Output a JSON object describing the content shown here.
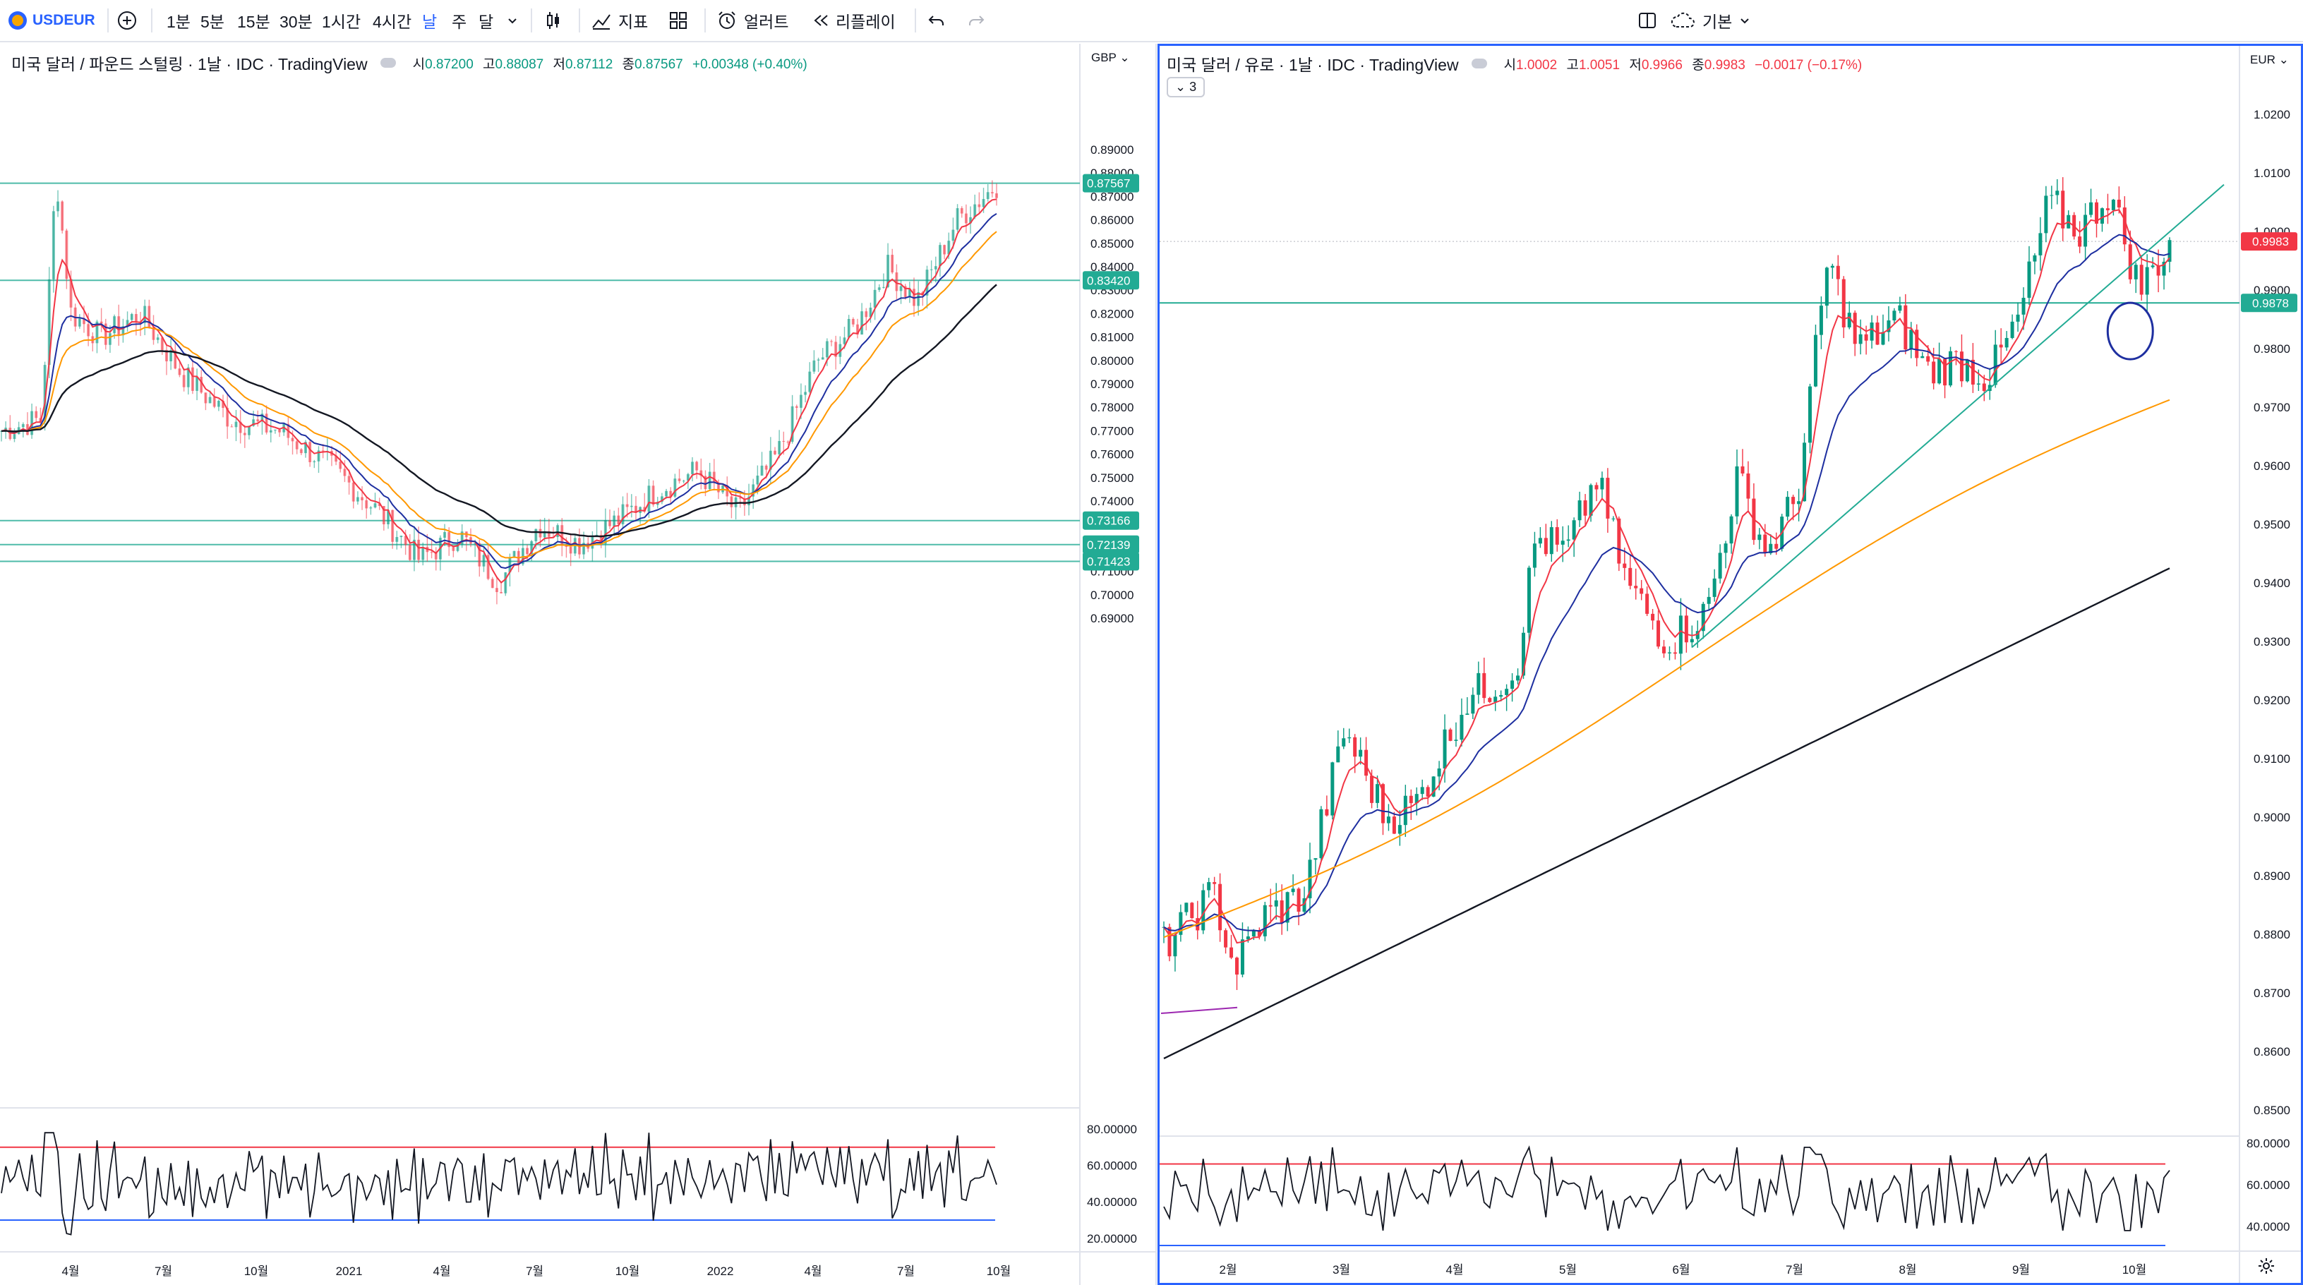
{
  "toolbar": {
    "symbol": "USDEUR",
    "intervals": [
      "1분",
      "5분",
      "15분",
      "30분",
      "1시간",
      "4시간",
      "날",
      "주",
      "달"
    ],
    "active_interval": "날",
    "indicators_label": "지표",
    "alert_label": "얼러트",
    "replay_label": "리플레이",
    "layout_label": "기본"
  },
  "left_chart": {
    "title": "미국 달러 / 파운드 스털링 · 1날 · IDC · TradingView",
    "ohlc": {
      "o_label": "시",
      "o": "0.87200",
      "h_label": "고",
      "h": "0.88087",
      "l_label": "저",
      "l": "0.87112",
      "c_label": "종",
      "c": "0.87567",
      "change": "+0.00348 (+0.40%)"
    },
    "currency": "GBP",
    "price_ticks": [
      "0.89000",
      "0.88000",
      "0.87000",
      "0.86000",
      "0.85000",
      "0.84000",
      "0.83000",
      "0.82000",
      "0.81000",
      "0.80000",
      "0.79000",
      "0.78000",
      "0.77000",
      "0.76000",
      "0.75000",
      "0.74000",
      "0.73000",
      "0.72000",
      "0.71000",
      "0.70000",
      "0.69000"
    ],
    "price_tick_values": [
      0.89,
      0.88,
      0.87,
      0.86,
      0.85,
      0.84,
      0.83,
      0.82,
      0.81,
      0.8,
      0.79,
      0.78,
      0.77,
      0.76,
      0.75,
      0.74,
      0.73,
      0.72,
      0.71,
      0.7,
      0.69
    ],
    "horizontal_levels": [
      0.87567,
      0.8342,
      0.73166,
      0.72139,
      0.71423
    ],
    "level_labels": [
      "0.87567",
      "0.83420",
      "0.73166",
      "0.72139",
      "0.71423"
    ],
    "rsi_ticks": [
      "80.00000",
      "60.00000",
      "40.00000",
      "20.00000"
    ],
    "rsi_tick_values": [
      80,
      60,
      40,
      20
    ],
    "rsi_bands": [
      70,
      30
    ],
    "time_ticks": [
      "4월",
      "7월",
      "10월",
      "2021",
      "4월",
      "7월",
      "10월",
      "2022",
      "4월",
      "7월",
      "10월"
    ],
    "colors": {
      "up": "#089981",
      "down": "#f23645",
      "ema_fast": "#f23645",
      "ema_mid": "#1e2fa0",
      "ema_slow": "#ff9800",
      "ema_long": "#131722",
      "level": "#22ab94",
      "badge": "#22ab94"
    }
  },
  "right_chart": {
    "title": "미국 달러 / 유로 · 1날 · IDC · TradingView",
    "ohlc": {
      "o_label": "시",
      "o": "1.0002",
      "h_label": "고",
      "h": "1.0051",
      "l_label": "저",
      "l": "0.9966",
      "c_label": "종",
      "c": "0.9983",
      "change": "−0.0017 (−0.17%)"
    },
    "collapsed_count": "3",
    "currency": "EUR",
    "price_ticks": [
      "1.0200",
      "1.0100",
      "1.0000",
      "0.9900",
      "0.9800",
      "0.9700",
      "0.9600",
      "0.9500",
      "0.9400",
      "0.9300",
      "0.9200",
      "0.9100",
      "0.9000",
      "0.8900",
      "0.8800",
      "0.8700",
      "0.8600",
      "0.8500"
    ],
    "price_tick_values": [
      1.02,
      1.01,
      1.0,
      0.99,
      0.98,
      0.97,
      0.96,
      0.95,
      0.94,
      0.93,
      0.92,
      0.91,
      0.9,
      0.89,
      0.88,
      0.87,
      0.86,
      0.85
    ],
    "last_price_label": "0.9983",
    "last_price": 0.9983,
    "level_label": "0.9878",
    "level": 0.9878,
    "rsi_ticks": [
      "80.0000",
      "60.0000",
      "40.0000"
    ],
    "rsi_tick_values": [
      80,
      60,
      40
    ],
    "rsi_bands": [
      70,
      30
    ],
    "time_ticks": [
      "2월",
      "3월",
      "4월",
      "5월",
      "6월",
      "7월",
      "8월",
      "9월",
      "10월"
    ],
    "colors": {
      "up": "#089981",
      "down": "#f23645",
      "last": "#f23645",
      "level": "#22ab94",
      "circle": "#1e2fa0"
    }
  }
}
